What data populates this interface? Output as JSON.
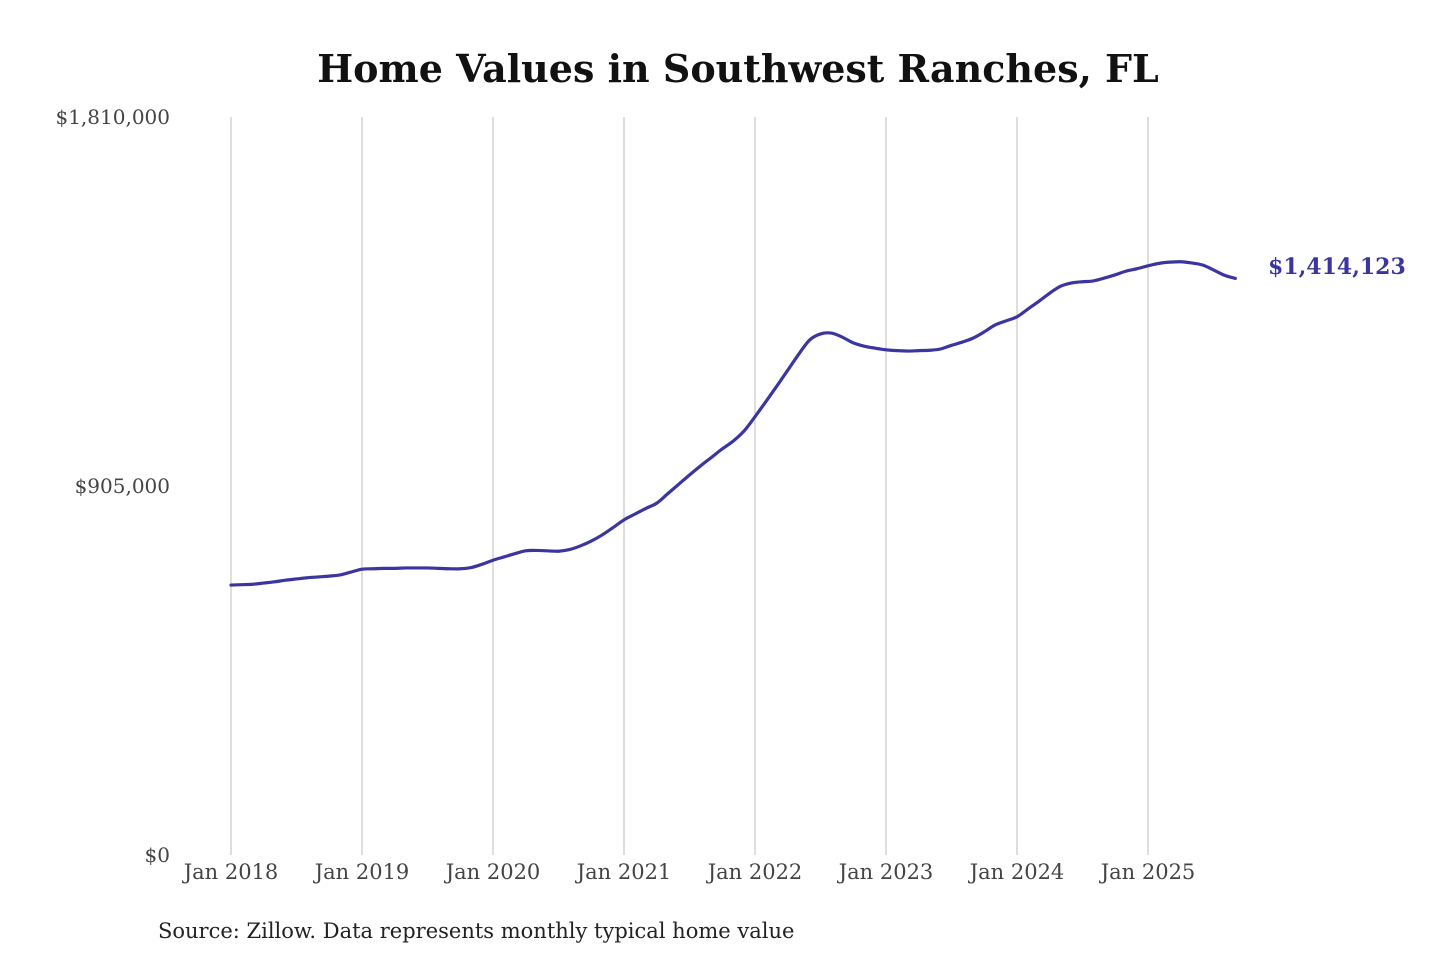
{
  "chart_data": {
    "type": "line",
    "title": "Home Values in Southwest Ranches, FL",
    "source": "Source: Zillow. Data represents monthly typical home value",
    "ylim": [
      0,
      1810000
    ],
    "y_ticks": [
      {
        "value": 1810000,
        "label": "$1,810,000"
      },
      {
        "value": 905000,
        "label": "$905,000"
      },
      {
        "value": 0,
        "label": "$0"
      }
    ],
    "x_ticks": [
      {
        "value": "2018-01",
        "label": "Jan 2018"
      },
      {
        "value": "2019-01",
        "label": "Jan 2019"
      },
      {
        "value": "2020-01",
        "label": "Jan 2020"
      },
      {
        "value": "2021-01",
        "label": "Jan 2021"
      },
      {
        "value": "2022-01",
        "label": "Jan 2022"
      },
      {
        "value": "2023-01",
        "label": "Jan 2023"
      },
      {
        "value": "2024-01",
        "label": "Jan 2024"
      },
      {
        "value": "2025-01",
        "label": "Jan 2025"
      }
    ],
    "grid": "vertical",
    "line_color": "#3a35a0",
    "end_label": "$1,414,123",
    "series": [
      {
        "start": "2018-01",
        "frequency": "monthly",
        "values": [
          662000,
          663000,
          664000,
          667000,
          670000,
          674000,
          677000,
          680000,
          682000,
          684000,
          687000,
          694000,
          701000,
          702000,
          703000,
          703000,
          704000,
          704000,
          704000,
          703000,
          702000,
          702000,
          705000,
          713000,
          723000,
          731000,
          739000,
          746000,
          747000,
          746000,
          745000,
          749000,
          758000,
          770000,
          785000,
          803000,
          822000,
          836000,
          850000,
          863000,
          886000,
          909000,
          932000,
          954000,
          975000,
          996000,
          1015000,
          1040000,
          1075000,
          1112000,
          1150000,
          1189000,
          1228000,
          1263000,
          1278000,
          1280000,
          1270000,
          1256000,
          1248000,
          1243000,
          1239000,
          1237000,
          1236000,
          1237000,
          1238000,
          1241000,
          1250000,
          1258000,
          1268000,
          1283000,
          1300000,
          1310000,
          1320000,
          1339000,
          1358000,
          1378000,
          1395000,
          1403000,
          1406000,
          1408000,
          1415000,
          1423000,
          1432000,
          1438000,
          1445000,
          1451000,
          1454000,
          1455000,
          1452000,
          1447000,
          1435000,
          1422000,
          1414123
        ]
      }
    ]
  }
}
